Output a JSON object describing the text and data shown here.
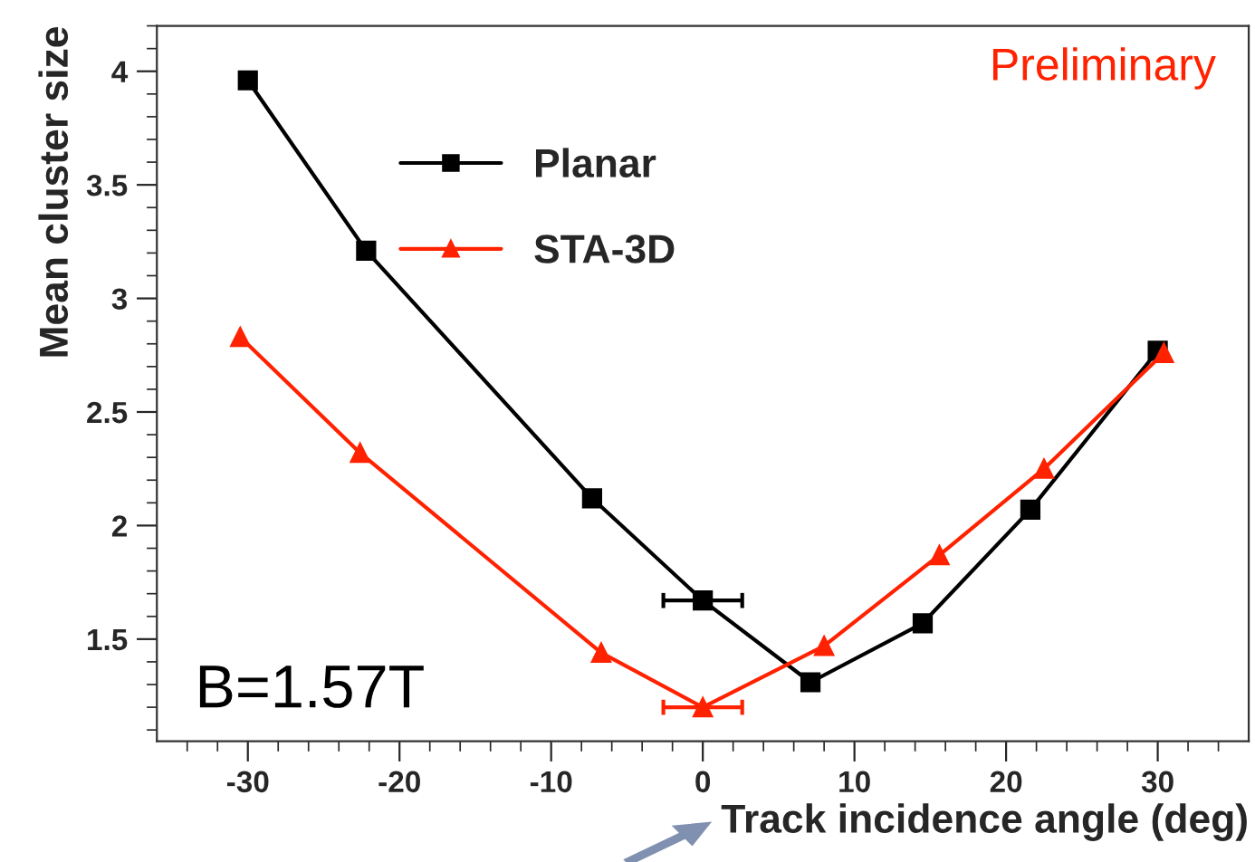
{
  "chart_data": {
    "type": "line",
    "xlabel": "Track incidence angle (deg)",
    "ylabel": "Mean cluster size",
    "xlim": [
      -36,
      36
    ],
    "xticks": [
      {
        "value": -34,
        "label": null
      },
      {
        "value": -32,
        "label": null
      },
      -30,
      {
        "value": -28,
        "label": null
      },
      {
        "value": -26,
        "label": null
      },
      {
        "value": -24,
        "label": null
      },
      {
        "value": -22,
        "label": null
      },
      -20,
      {
        "value": -18,
        "label": null
      },
      {
        "value": -16,
        "label": null
      },
      {
        "value": -14,
        "label": null
      },
      {
        "value": -12,
        "label": null
      },
      -10,
      {
        "value": -8,
        "label": null
      },
      {
        "value": -6,
        "label": null
      },
      {
        "value": -4,
        "label": null
      },
      {
        "value": -2,
        "label": null
      },
      0,
      {
        "value": 2,
        "label": null
      },
      {
        "value": 4,
        "label": null
      },
      {
        "value": 6,
        "label": null
      },
      {
        "value": 8,
        "label": null
      },
      10,
      {
        "value": 12,
        "label": null
      },
      {
        "value": 14,
        "label": null
      },
      {
        "value": 16,
        "label": null
      },
      {
        "value": 18,
        "label": null
      },
      20,
      {
        "value": 22,
        "label": null
      },
      {
        "value": 24,
        "label": null
      },
      {
        "value": 26,
        "label": null
      },
      {
        "value": 28,
        "label": null
      },
      30,
      {
        "value": 32,
        "label": null
      },
      {
        "value": 34,
        "label": null
      }
    ],
    "ylim": [
      1.05,
      4.2
    ],
    "yticks": [
      {
        "value": 1.1,
        "label": null
      },
      {
        "value": 1.2,
        "label": null
      },
      {
        "value": 1.3,
        "label": null
      },
      {
        "value": 1.4,
        "label": null
      },
      1.5,
      {
        "value": 1.6,
        "label": null
      },
      {
        "value": 1.7,
        "label": null
      },
      {
        "value": 1.8,
        "label": null
      },
      {
        "value": 1.9,
        "label": null
      },
      2,
      {
        "value": 2.1,
        "label": null
      },
      {
        "value": 2.2,
        "label": null
      },
      {
        "value": 2.3,
        "label": null
      },
      {
        "value": 2.4,
        "label": null
      },
      2.5,
      {
        "value": 2.6,
        "label": null
      },
      {
        "value": 2.7,
        "label": null
      },
      {
        "value": 2.8,
        "label": null
      },
      {
        "value": 2.9,
        "label": null
      },
      3,
      {
        "value": 3.1,
        "label": null
      },
      {
        "value": 3.2,
        "label": null
      },
      {
        "value": 3.3,
        "label": null
      },
      {
        "value": 3.4,
        "label": null
      },
      3.5,
      {
        "value": 3.6,
        "label": null
      },
      {
        "value": 3.7,
        "label": null
      },
      {
        "value": 3.8,
        "label": null
      },
      {
        "value": 3.9,
        "label": null
      },
      4,
      {
        "value": 4.1,
        "label": null
      },
      {
        "value": 4.2,
        "label": null
      }
    ],
    "line_style": "solid",
    "legend": "top left",
    "grid": false,
    "annotations": [
      "Preliminary",
      "B=1.57T"
    ],
    "series": [
      {
        "name": "Planar",
        "color": "#000000",
        "marker": "square",
        "x": [
          -30,
          -22.2,
          -7.3,
          0,
          7.1,
          14.5,
          21.6,
          30
        ],
        "values": [
          3.96,
          3.21,
          2.12,
          1.67,
          1.31,
          1.57,
          2.07,
          2.77
        ],
        "xerrors": [
          null,
          null,
          null,
          2.6,
          null,
          null,
          null,
          null
        ]
      },
      {
        "name": "STA-3D",
        "color": "#ff2200",
        "marker": "triangle",
        "x": [
          -30.5,
          -22.6,
          -6.7,
          0,
          8.0,
          15.6,
          22.5,
          30.4
        ],
        "values": [
          2.83,
          2.32,
          1.44,
          1.2,
          1.47,
          1.87,
          2.25,
          2.76
        ],
        "xerrors": [
          null,
          null,
          null,
          2.6,
          null,
          null,
          null,
          null
        ]
      }
    ]
  }
}
